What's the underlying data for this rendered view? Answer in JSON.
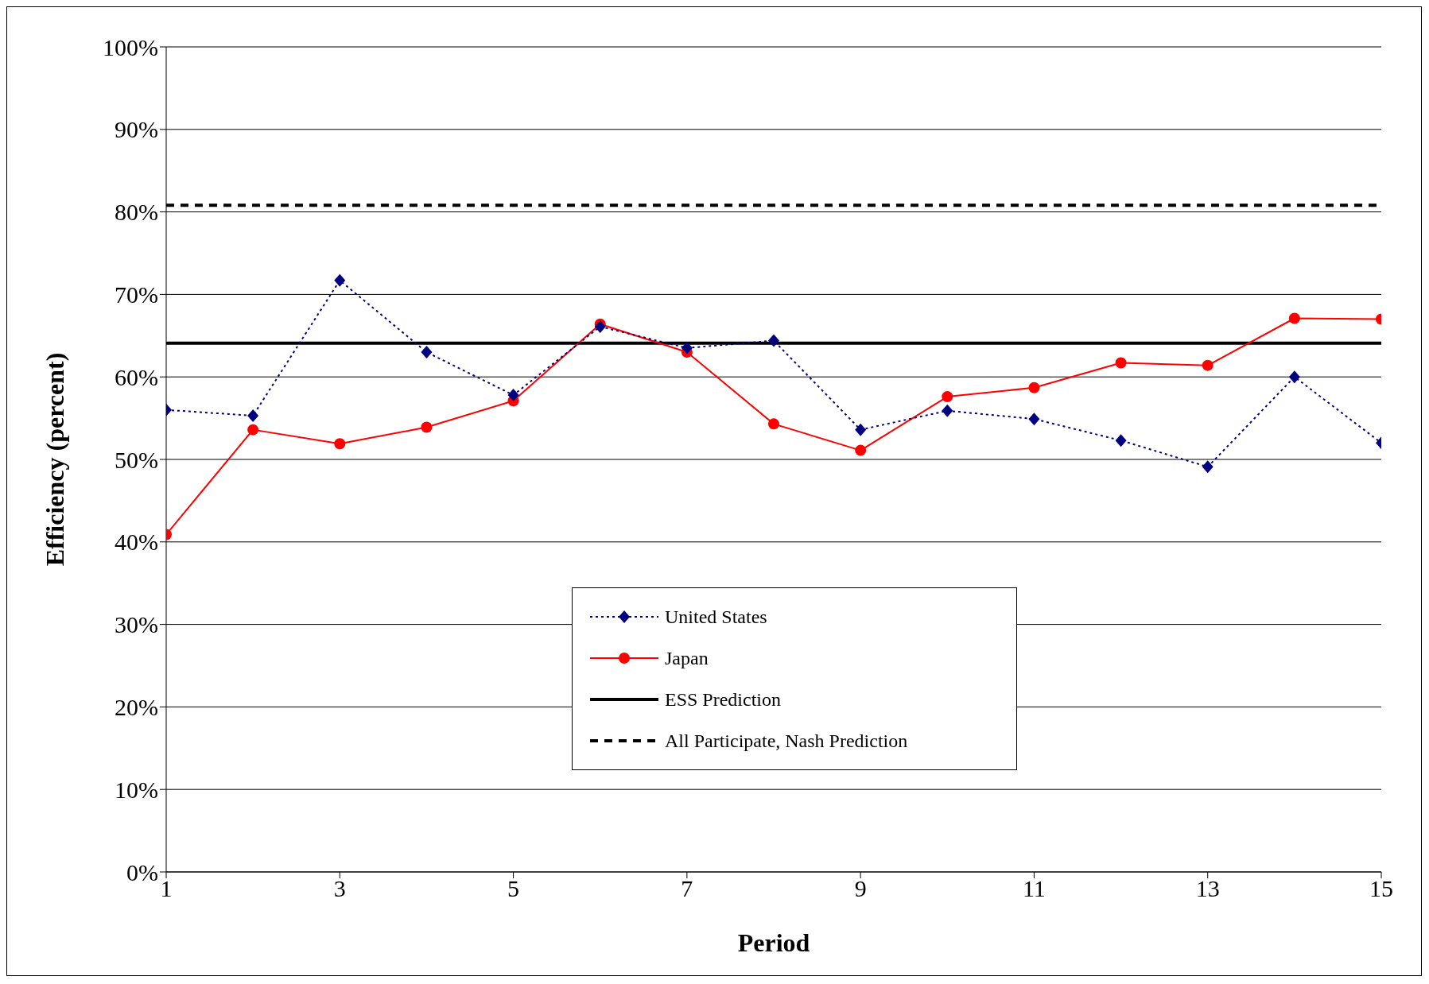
{
  "chart_data": {
    "type": "line",
    "xlabel": "Period",
    "ylabel": "Efficiency (percent)",
    "x": [
      1,
      2,
      3,
      4,
      5,
      6,
      7,
      8,
      9,
      10,
      11,
      12,
      13,
      14,
      15
    ],
    "series": [
      {
        "name": "United States",
        "color": "#000080",
        "values": [
          56.0,
          55.3,
          71.7,
          63.0,
          57.8,
          66.1,
          63.5,
          64.4,
          53.6,
          55.9,
          54.9,
          52.3,
          49.1,
          60.0,
          52.0
        ],
        "marker": "diamond",
        "line_style": "dotted"
      },
      {
        "name": "Japan",
        "color": "#ff0000",
        "values": [
          40.9,
          53.6,
          51.9,
          53.9,
          57.1,
          66.4,
          63.0,
          54.3,
          51.1,
          57.6,
          58.7,
          61.7,
          61.4,
          67.1,
          67.0
        ],
        "marker": "circle",
        "line_style": "solid"
      }
    ],
    "ref_lines": [
      {
        "axis": "y",
        "value": 64.1,
        "label": "ESS Prediction",
        "color": "#000000",
        "line_style": "solid"
      },
      {
        "axis": "y",
        "value": 80.8,
        "label": "All Participate, Nash Prediction",
        "color": "#000000",
        "line_style": "dashed"
      }
    ],
    "xlim": [
      1,
      15
    ],
    "xticks": [
      1,
      3,
      5,
      7,
      9,
      11,
      13,
      15
    ],
    "ylim": [
      0,
      100
    ],
    "yticks": [
      {
        "value": 0,
        "label": "0%"
      },
      {
        "value": 10,
        "label": "10%"
      },
      {
        "value": 20,
        "label": "20%"
      },
      {
        "value": 30,
        "label": "30%"
      },
      {
        "value": 40,
        "label": "40%"
      },
      {
        "value": 50,
        "label": "50%"
      },
      {
        "value": 60,
        "label": "60%"
      },
      {
        "value": 70,
        "label": "70%"
      },
      {
        "value": 80,
        "label": "80%"
      },
      {
        "value": 90,
        "label": "90%"
      },
      {
        "value": 100,
        "label": "100%"
      }
    ],
    "grid": "y",
    "legend": "bottom"
  }
}
